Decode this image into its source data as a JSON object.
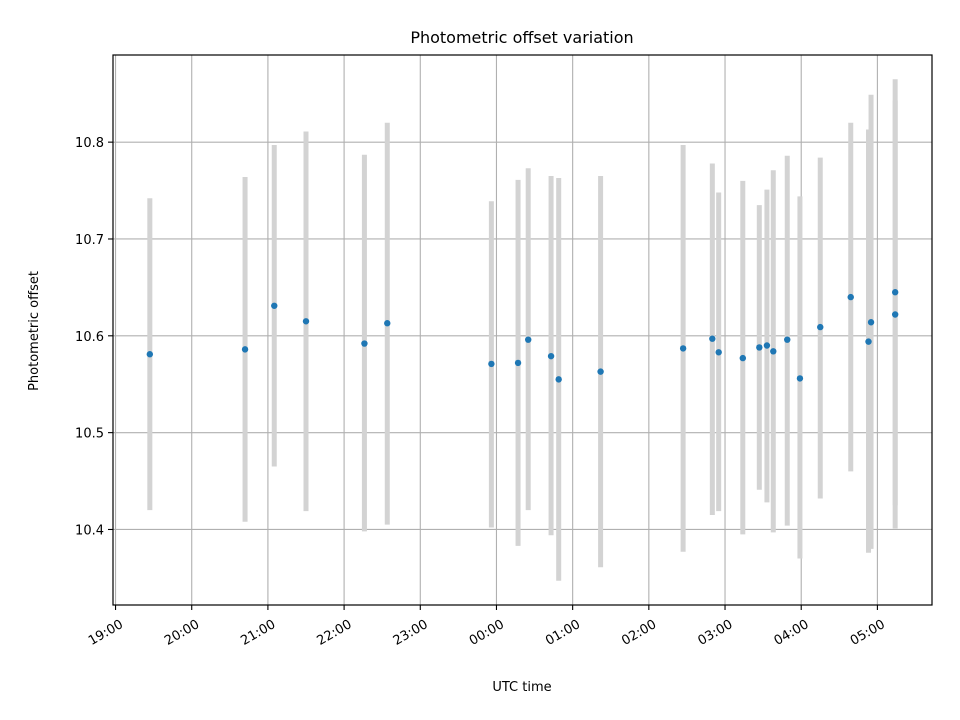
{
  "chart_data": {
    "type": "scatter",
    "title": "Photometric offset variation",
    "xlabel": "UTC time",
    "ylabel": "Photometric offset",
    "x_axis": "time",
    "xlim": [
      "18:58",
      "05:43"
    ],
    "ylim": [
      10.322,
      10.89
    ],
    "grid": true,
    "legend": "none",
    "x_ticks": [
      "19:00",
      "20:00",
      "21:00",
      "22:00",
      "23:00",
      "00:00",
      "01:00",
      "02:00",
      "03:00",
      "04:00",
      "05:00"
    ],
    "y_ticks": [
      10.4,
      10.5,
      10.6,
      10.7,
      10.8
    ],
    "y_tick_labels": [
      "10.4",
      "10.5",
      "10.6",
      "10.7",
      "10.8"
    ],
    "colors": {
      "marker": "#1f77b4",
      "errorbar": "#d3d3d3",
      "grid": "#b0b0b0"
    },
    "points": [
      {
        "x": "19:27",
        "y": 10.581,
        "ymin": 10.42,
        "ymax": 10.742
      },
      {
        "x": "20:42",
        "y": 10.586,
        "ymin": 10.408,
        "ymax": 10.764
      },
      {
        "x": "21:05",
        "y": 10.631,
        "ymin": 10.465,
        "ymax": 10.797
      },
      {
        "x": "21:30",
        "y": 10.615,
        "ymin": 10.419,
        "ymax": 10.811
      },
      {
        "x": "22:16",
        "y": 10.592,
        "ymin": 10.398,
        "ymax": 10.787
      },
      {
        "x": "22:34",
        "y": 10.613,
        "ymin": 10.405,
        "ymax": 10.82
      },
      {
        "x": "23:56",
        "y": 10.571,
        "ymin": 10.402,
        "ymax": 10.739
      },
      {
        "x": "00:17",
        "y": 10.572,
        "ymin": 10.383,
        "ymax": 10.761
      },
      {
        "x": "00:25",
        "y": 10.596,
        "ymin": 10.42,
        "ymax": 10.773
      },
      {
        "x": "00:43",
        "y": 10.579,
        "ymin": 10.394,
        "ymax": 10.765
      },
      {
        "x": "00:49",
        "y": 10.555,
        "ymin": 10.347,
        "ymax": 10.763
      },
      {
        "x": "01:22",
        "y": 10.563,
        "ymin": 10.361,
        "ymax": 10.765
      },
      {
        "x": "02:27",
        "y": 10.587,
        "ymin": 10.377,
        "ymax": 10.797
      },
      {
        "x": "02:50",
        "y": 10.597,
        "ymin": 10.415,
        "ymax": 10.778
      },
      {
        "x": "02:55",
        "y": 10.583,
        "ymin": 10.419,
        "ymax": 10.748
      },
      {
        "x": "03:14",
        "y": 10.577,
        "ymin": 10.395,
        "ymax": 10.76
      },
      {
        "x": "03:27",
        "y": 10.588,
        "ymin": 10.441,
        "ymax": 10.735
      },
      {
        "x": "03:33",
        "y": 10.59,
        "ymin": 10.428,
        "ymax": 10.751
      },
      {
        "x": "03:38",
        "y": 10.584,
        "ymin": 10.397,
        "ymax": 10.771
      },
      {
        "x": "03:49",
        "y": 10.596,
        "ymin": 10.404,
        "ymax": 10.786
      },
      {
        "x": "03:59",
        "y": 10.556,
        "ymin": 10.37,
        "ymax": 10.744
      },
      {
        "x": "04:15",
        "y": 10.609,
        "ymin": 10.432,
        "ymax": 10.784
      },
      {
        "x": "04:39",
        "y": 10.64,
        "ymin": 10.46,
        "ymax": 10.82
      },
      {
        "x": "04:53",
        "y": 10.594,
        "ymin": 10.376,
        "ymax": 10.813
      },
      {
        "x": "04:55",
        "y": 10.614,
        "ymin": 10.38,
        "ymax": 10.849
      },
      {
        "x": "05:14",
        "y": 10.645,
        "ymin": 10.425,
        "ymax": 10.865
      },
      {
        "x": "05:14",
        "y": 10.622,
        "ymin": 10.401,
        "ymax": 10.843
      }
    ]
  }
}
